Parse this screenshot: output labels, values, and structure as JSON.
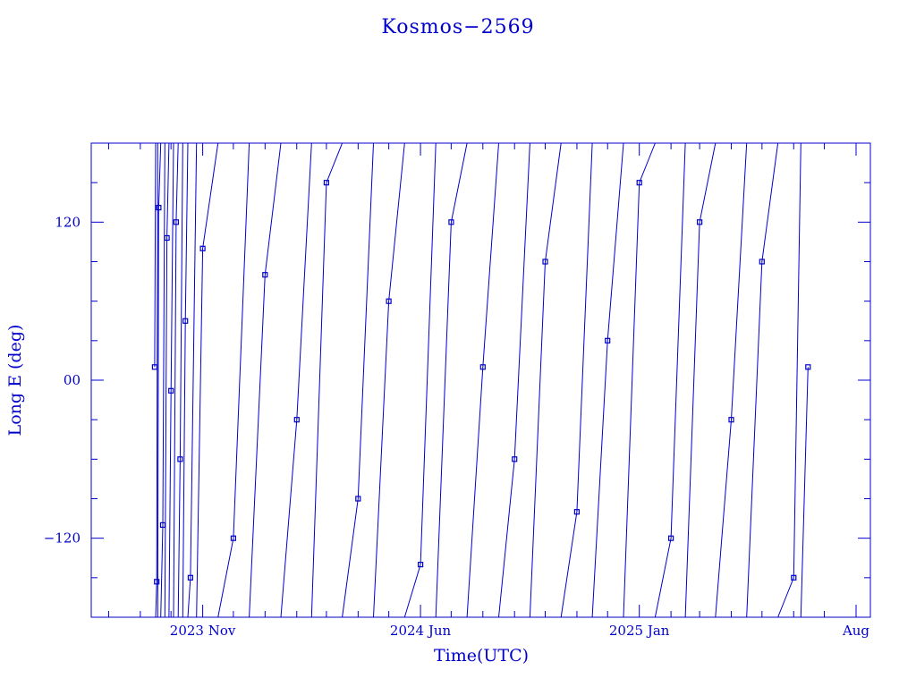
{
  "chart_data": {
    "type": "line",
    "title": "Kosmos−2569",
    "xlabel": "Time(UTC)",
    "ylabel": "Long E (deg)",
    "xlim": [
      "2023-07-15",
      "2025-08-15"
    ],
    "ylim": [
      -180,
      180
    ],
    "x_ticks": [
      {
        "label": "2023 Nov",
        "date": "2023-11-01"
      },
      {
        "label": "2024 Jun",
        "date": "2024-06-01"
      },
      {
        "label": "2025 Jan",
        "date": "2025-01-01"
      },
      {
        "label": "Aug",
        "date": "2025-08-01"
      }
    ],
    "y_ticks": [
      {
        "label": "120",
        "value": 120
      },
      {
        "label": "00",
        "value": 0
      },
      {
        "label": "−120",
        "value": -120
      }
    ],
    "grid": false,
    "color": "#0000cc",
    "series": [
      {
        "x_start": "2023-09-15",
        "x_end": "2025-06-15",
        "wraps": 180,
        "samples": [
          {
            "date": "2023-09-15",
            "value": 10
          },
          {
            "date": "2023-09-17",
            "value": -153
          },
          {
            "date": "2023-09-19",
            "value": 131
          },
          {
            "date": "2023-09-23",
            "value": -110
          },
          {
            "date": "2023-09-27",
            "value": 108
          },
          {
            "date": "2023-10-01",
            "value": -8
          },
          {
            "date": "2023-10-06",
            "value": 120
          },
          {
            "date": "2023-10-10",
            "value": -60
          },
          {
            "date": "2023-10-15",
            "value": 45
          },
          {
            "date": "2023-10-20",
            "value": -150
          },
          {
            "date": "2023-11-01",
            "value": 100
          },
          {
            "date": "2023-12-01",
            "value": -120
          },
          {
            "date": "2024-01-01",
            "value": 80
          },
          {
            "date": "2024-02-01",
            "value": -30
          },
          {
            "date": "2024-03-01",
            "value": 150
          },
          {
            "date": "2024-04-01",
            "value": -90
          },
          {
            "date": "2024-05-01",
            "value": 60
          },
          {
            "date": "2024-06-01",
            "value": -140
          },
          {
            "date": "2024-07-01",
            "value": 120
          },
          {
            "date": "2024-08-01",
            "value": 10
          },
          {
            "date": "2024-09-01",
            "value": -60
          },
          {
            "date": "2024-10-01",
            "value": 90
          },
          {
            "date": "2024-11-01",
            "value": -100
          },
          {
            "date": "2024-12-01",
            "value": 30
          },
          {
            "date": "2025-01-01",
            "value": 150
          },
          {
            "date": "2025-02-01",
            "value": -120
          },
          {
            "date": "2025-03-01",
            "value": 120
          },
          {
            "date": "2025-04-01",
            "value": -30
          },
          {
            "date": "2025-05-01",
            "value": 90
          },
          {
            "date": "2025-06-01",
            "value": -150
          },
          {
            "date": "2025-06-15",
            "value": 10
          }
        ]
      }
    ]
  }
}
